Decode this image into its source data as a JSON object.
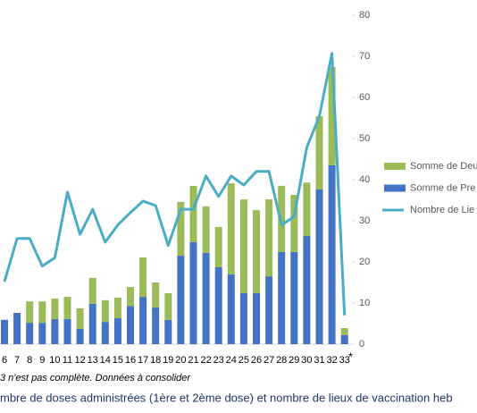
{
  "chart_data": {
    "type": "bar",
    "categories": [
      "6",
      "7",
      "8",
      "9",
      "10",
      "11",
      "12",
      "13",
      "14",
      "15",
      "16",
      "17",
      "18",
      "19",
      "20",
      "21",
      "22",
      "23",
      "24",
      "25",
      "26",
      "27",
      "28",
      "29",
      "30",
      "31",
      "32",
      "33"
    ],
    "series": [
      {
        "name": "Somme de Pre",
        "color": "#4472c4",
        "type": "bar",
        "values": [
          5.9,
          7.6,
          5.2,
          5.2,
          6.1,
          6.1,
          3.7,
          9.8,
          5.4,
          6.3,
          9.3,
          11.5,
          8.9,
          5.9,
          21.5,
          24.8,
          22.2,
          18.7,
          17,
          12.4,
          12.4,
          16.5,
          22.4,
          22.4,
          26.3,
          37.6,
          43.5,
          2.2
        ]
      },
      {
        "name": "Somme de Deu",
        "color": "#9bbb59",
        "type": "bar",
        "values": [
          0,
          0,
          5.2,
          5.2,
          5,
          5.4,
          5,
          6.3,
          5.3,
          5,
          4.6,
          9.6,
          6.1,
          6.5,
          13.1,
          13.7,
          11.3,
          9.8,
          22.1,
          22.8,
          20.2,
          18.7,
          16.1,
          13.9,
          13,
          17.8,
          23.9,
          1.7
        ]
      },
      {
        "name": "Nombre de Lie",
        "color": "#4bacc6",
        "type": "line",
        "values": [
          15.2,
          25.7,
          25.7,
          19,
          21,
          37,
          26.7,
          32.8,
          24.8,
          29,
          32,
          34.8,
          33.7,
          24,
          32.8,
          32.8,
          40.9,
          35.9,
          40.9,
          38.7,
          42,
          42,
          29,
          31,
          47.8,
          55.4,
          70.7,
          7
        ]
      }
    ],
    "ylim": [
      0,
      80
    ],
    "yticks": [
      0,
      10,
      20,
      30,
      40,
      50,
      60,
      70,
      80
    ],
    "annotation": "*",
    "footnote": "3 n'est pas complète. Données à consolider",
    "caption": "mbre de doses administrées (1ère et 2ème dose) et nombre de lieux de vaccination heb"
  }
}
